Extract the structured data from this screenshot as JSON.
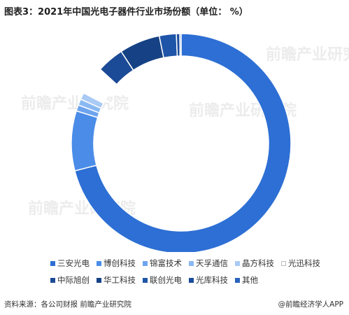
{
  "title": "图表3：2021年中国光电子器件行业市场份额（单位： %）",
  "source": "资料来源：各公司财报 前瞻产业研究院",
  "brand": "@前瞻经济学人APP",
  "watermark": "前瞻产业研究院",
  "chart_data": {
    "type": "pie",
    "style": "donut",
    "title": "2021年中国光电子器件行业市场份额",
    "unit": "%",
    "legend_position": "bottom",
    "slices": [
      {
        "name": "三安光电",
        "value": 71.0,
        "color": "#2d6fd4"
      },
      {
        "name": "博创科技",
        "value": 8.8,
        "color": "#4a8ce8"
      },
      {
        "name": "锦富技术",
        "value": 0.9,
        "color": "#6ea4ee"
      },
      {
        "name": "天孚通信",
        "value": 0.9,
        "color": "#8ab8f2"
      },
      {
        "name": "晶方科技",
        "value": 1.0,
        "color": "#a9caf5"
      },
      {
        "name": "光迅科技",
        "value": 4.2,
        "color": "#ffffff"
      },
      {
        "name": "中际旭创",
        "value": 4.0,
        "color": "#1b4a96"
      },
      {
        "name": "华工科技",
        "value": 6.0,
        "color": "#164285"
      },
      {
        "name": "联创光电",
        "value": 2.5,
        "color": "#1e55a8"
      },
      {
        "name": "光库科技",
        "value": 0.5,
        "color": "#1a4c9a"
      },
      {
        "name": "其他",
        "value": 0.2,
        "color": "#2a62bd"
      }
    ]
  }
}
